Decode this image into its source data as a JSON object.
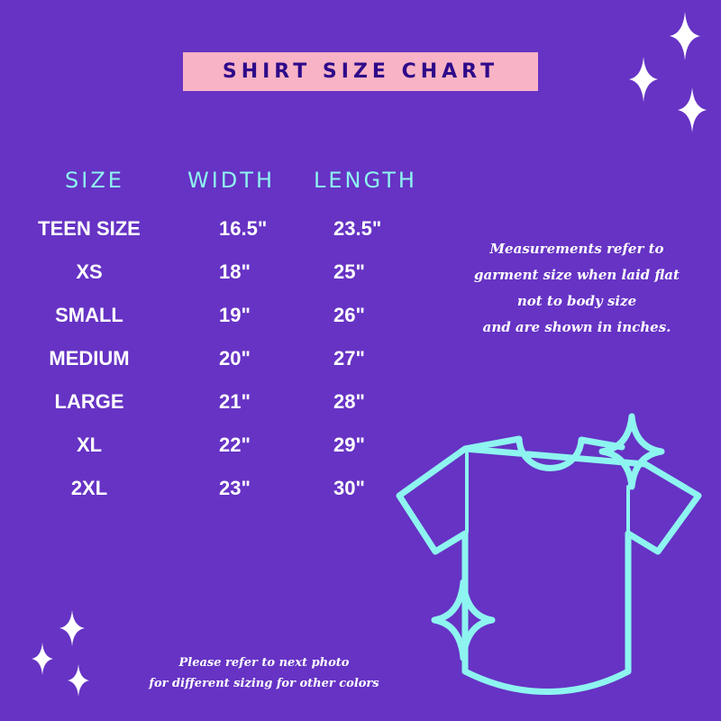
{
  "title": "SHIRT SIZE CHART",
  "table": {
    "headers": [
      "SIZE",
      "WIDTH",
      "LENGTH"
    ],
    "rows": [
      {
        "size": "TEEN SIZE",
        "width": "16.5\"",
        "length": "23.5\""
      },
      {
        "size": "XS",
        "width": "18\"",
        "length": "25\""
      },
      {
        "size": "SMALL",
        "width": "19\"",
        "length": "26\""
      },
      {
        "size": "MEDIUM",
        "width": "20\"",
        "length": "27\""
      },
      {
        "size": "LARGE",
        "width": "21\"",
        "length": "28\""
      },
      {
        "size": "XL",
        "width": "22\"",
        "length": "29\""
      },
      {
        "size": "2XL",
        "width": "23\"",
        "length": "30\""
      }
    ]
  },
  "note": [
    "Measurements refer to",
    "garment size when laid flat",
    "not to body size",
    "and are shown in inches."
  ],
  "footer": [
    "Please refer to next photo",
    "for different sizing for other colors"
  ],
  "colors": {
    "background": "#6633c4",
    "title_band": "#f9b3c6",
    "title_text": "#2e0a8a",
    "header_text": "#8ef4f0",
    "shirt_outline": "#8ef4f0"
  },
  "icons": [
    "sparkle-icon",
    "tshirt-icon"
  ]
}
